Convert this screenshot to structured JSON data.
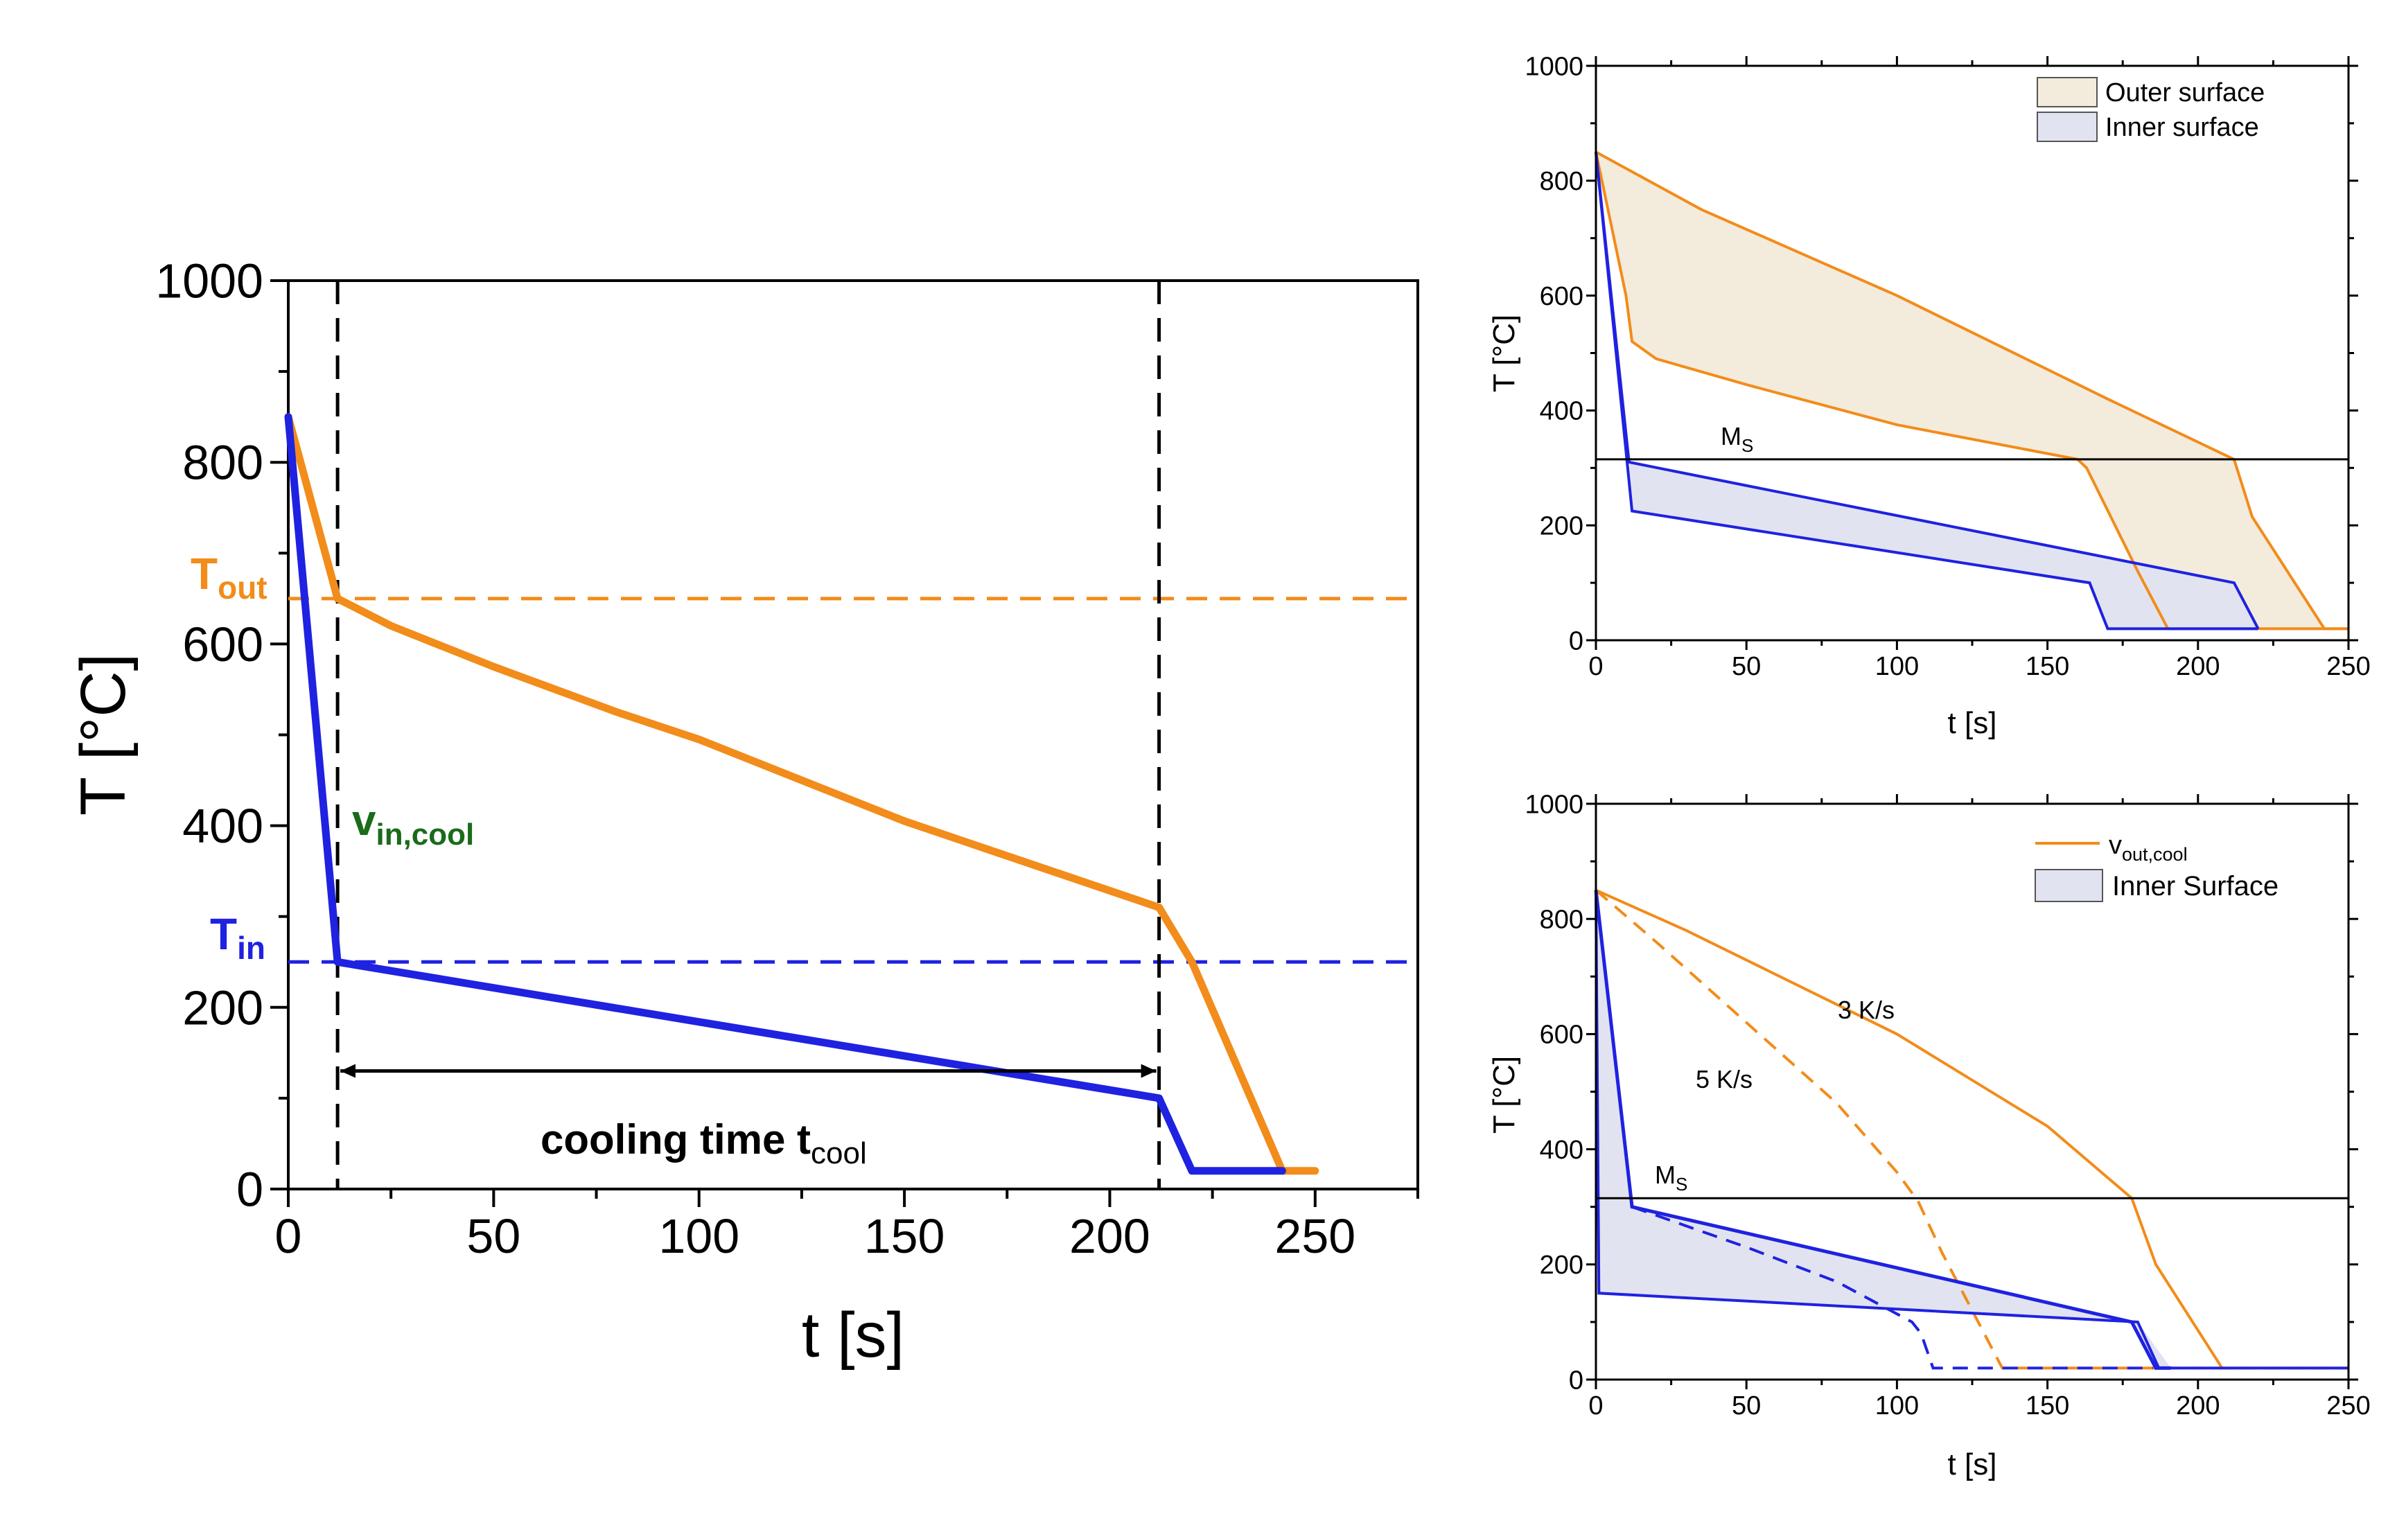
{
  "colors": {
    "orange": "#F28C1A",
    "blue": "#1F22E0",
    "green": "#1A6B1A",
    "black": "#000000",
    "orange_fill": "#F3EBDC",
    "blue_fill": "#E2E3F0"
  },
  "chart_data": [
    {
      "id": "main",
      "type": "line",
      "xlabel": "t [s]",
      "ylabel": "T [°C]",
      "xlim": [
        0,
        275
      ],
      "ylim": [
        0,
        1000
      ],
      "xticks": [
        "0",
        "50",
        "100",
        "150",
        "200",
        "250"
      ],
      "yticks": [
        "0",
        "200",
        "400",
        "600",
        "800",
        "1000"
      ],
      "series": [
        {
          "name": "T_out",
          "color": "#F28C1A",
          "points": [
            [
              0,
              850
            ],
            [
              12,
              650
            ],
            [
              25,
              620
            ],
            [
              50,
              575
            ],
            [
              80,
              525
            ],
            [
              100,
              495
            ],
            [
              150,
              405
            ],
            [
              212,
              310
            ],
            [
              220,
              250
            ],
            [
              242,
              20
            ],
            [
              250,
              20
            ]
          ]
        },
        {
          "name": "T_in",
          "color": "#1F22E0",
          "points": [
            [
              0,
              850
            ],
            [
              12,
              250
            ],
            [
              212,
              100
            ],
            [
              220,
              20
            ],
            [
              242,
              20
            ]
          ]
        }
      ],
      "hlines": [
        {
          "y": 650,
          "color": "#F28C1A"
        },
        {
          "y": 250,
          "color": "#1F22E0"
        }
      ],
      "vlines": [
        {
          "x": 12
        },
        {
          "x": 212
        }
      ],
      "labels": {
        "t_out": {
          "main": "T",
          "sub": "out"
        },
        "t_in": {
          "main": "T",
          "sub": "in"
        },
        "v_in_cool": {
          "main": "v",
          "sub": "in,cool"
        },
        "cooling_time": {
          "main": "cooling time t",
          "sub": "cool"
        }
      }
    },
    {
      "id": "top-right",
      "type": "area",
      "xlabel": "t [s]",
      "ylabel": "T [°C]",
      "xlim": [
        0,
        250
      ],
      "ylim": [
        0,
        1000
      ],
      "xticks": [
        "0",
        "50",
        "100",
        "150",
        "200",
        "250"
      ],
      "yticks": [
        "0",
        "200",
        "400",
        "600",
        "800",
        "1000"
      ],
      "legend": [
        {
          "label": "Outer surface"
        },
        {
          "label": "Inner surface"
        }
      ],
      "ms_line": {
        "y": 315,
        "label_main": "M",
        "label_sub": "S"
      },
      "outer_upper": [
        [
          0,
          850
        ],
        [
          35,
          750
        ],
        [
          100,
          600
        ],
        [
          170,
          420
        ],
        [
          212,
          315
        ],
        [
          218,
          215
        ],
        [
          242,
          20
        ],
        [
          250,
          20
        ]
      ],
      "outer_lower": [
        [
          0,
          850
        ],
        [
          10,
          600
        ],
        [
          12,
          520
        ],
        [
          20,
          490
        ],
        [
          50,
          445
        ],
        [
          100,
          375
        ],
        [
          160,
          315
        ],
        [
          163,
          300
        ],
        [
          180,
          120
        ],
        [
          190,
          20
        ],
        [
          250,
          20
        ]
      ],
      "inner_upper": [
        [
          0,
          850
        ],
        [
          11,
          310
        ],
        [
          212,
          100
        ],
        [
          220,
          20
        ]
      ],
      "inner_lower": [
        [
          0,
          850
        ],
        [
          12,
          225
        ],
        [
          164,
          100
        ],
        [
          170,
          20
        ],
        [
          220,
          20
        ]
      ]
    },
    {
      "id": "bottom-right",
      "type": "line",
      "xlabel": "t [s]",
      "ylabel": "T [°C]",
      "xlim": [
        0,
        250
      ],
      "ylim": [
        0,
        1000
      ],
      "xticks": [
        "0",
        "50",
        "100",
        "150",
        "200",
        "250"
      ],
      "yticks": [
        "0",
        "200",
        "400",
        "600",
        "800",
        "1000"
      ],
      "legend": [
        {
          "label_main": "v",
          "label_sub": "out,cool"
        },
        {
          "label": "Inner Surface"
        }
      ],
      "ms_line": {
        "y": 315,
        "label_main": "M",
        "label_sub": "S"
      },
      "annotations": [
        "3 K/s",
        "5 K/s"
      ],
      "orange_solid": [
        [
          0,
          850
        ],
        [
          30,
          780
        ],
        [
          100,
          600
        ],
        [
          150,
          440
        ],
        [
          178,
          315
        ],
        [
          186,
          200
        ],
        [
          208,
          20
        ],
        [
          250,
          20
        ]
      ],
      "orange_dashed": [
        [
          0,
          850
        ],
        [
          20,
          760
        ],
        [
          50,
          620
        ],
        [
          80,
          480
        ],
        [
          100,
          360
        ],
        [
          107,
          310
        ],
        [
          115,
          220
        ],
        [
          126,
          110
        ],
        [
          135,
          20
        ],
        [
          250,
          20
        ]
      ],
      "inner_upper": [
        [
          0,
          850
        ],
        [
          12,
          300
        ],
        [
          178,
          100
        ],
        [
          186,
          20
        ],
        [
          191,
          20
        ]
      ],
      "inner_lower": [
        [
          0,
          850
        ],
        [
          1,
          150
        ],
        [
          180,
          100
        ],
        [
          187,
          20
        ],
        [
          250,
          20
        ]
      ],
      "blue_dashed": [
        [
          12,
          300
        ],
        [
          50,
          230
        ],
        [
          80,
          170
        ],
        [
          105,
          100
        ],
        [
          108,
          80
        ],
        [
          112,
          20
        ],
        [
          185,
          20
        ]
      ]
    }
  ]
}
